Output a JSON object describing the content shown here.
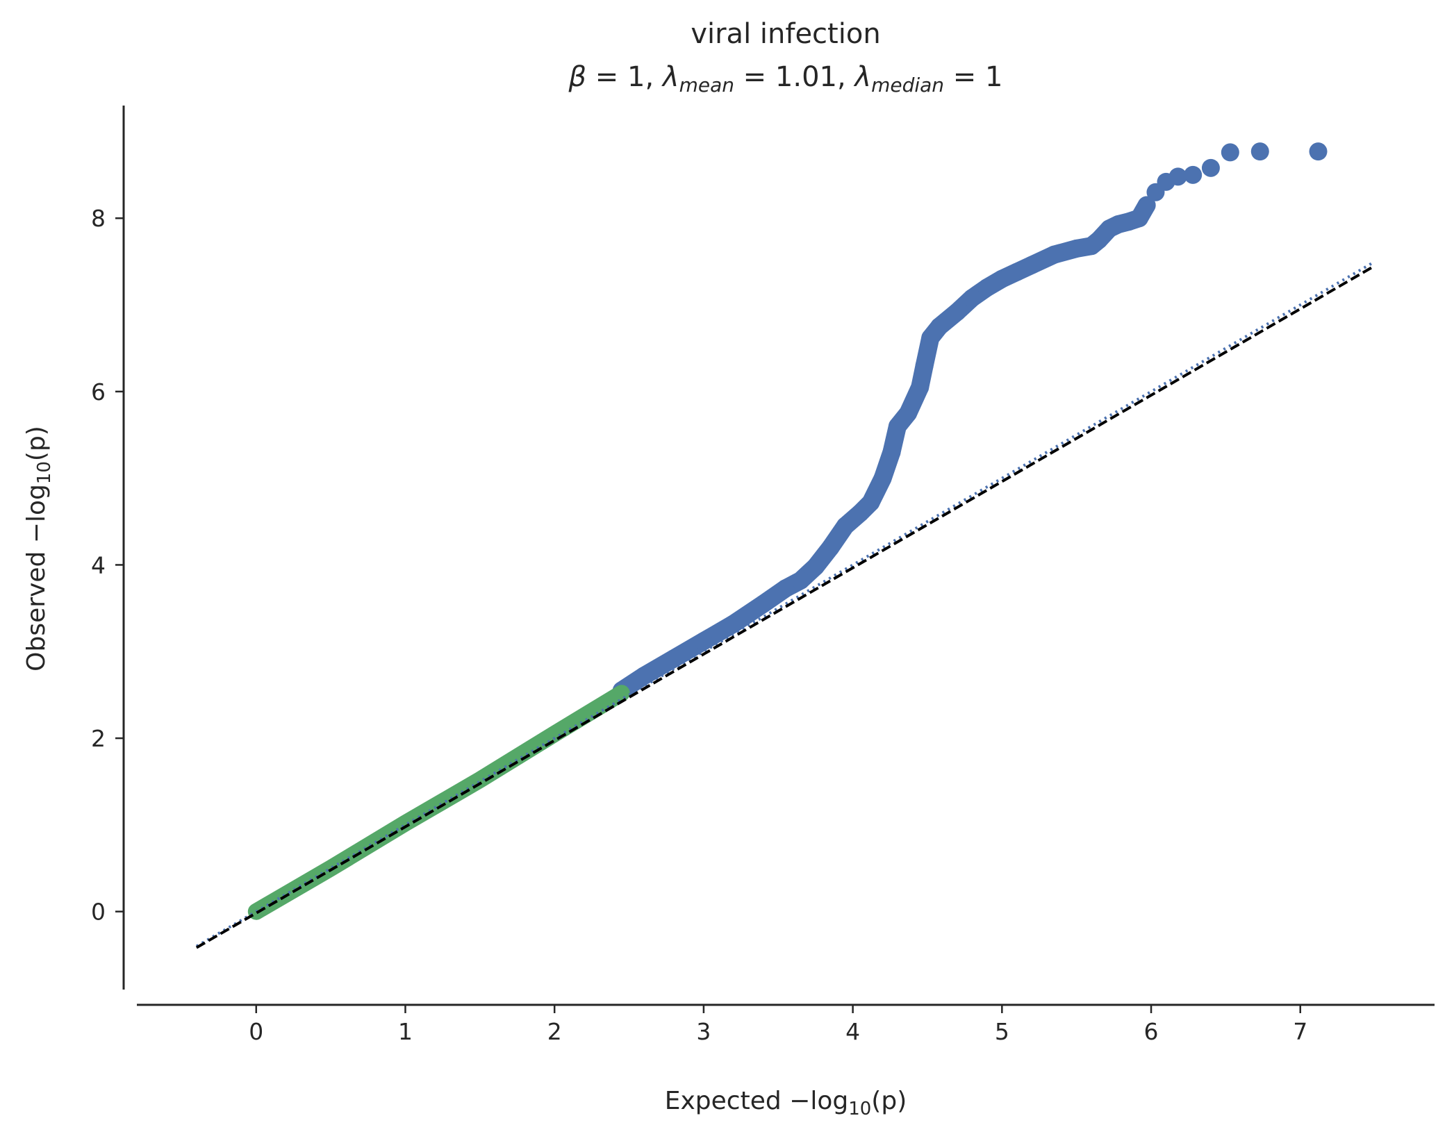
{
  "chart_data": {
    "type": "scatter",
    "title": "viral infection",
    "subtitle": {
      "beta": {
        "symbol": "β",
        "eq": " = 1, "
      },
      "lambda_mean": {
        "symbol": "λ",
        "sub": "mean",
        "eq": " = 1.01, "
      },
      "lambda_median": {
        "symbol": "λ",
        "sub": "median",
        "eq": " = 1"
      }
    },
    "xlabel": {
      "pre": "Expected −log",
      "sub": "10",
      "post": "(p)"
    },
    "ylabel": {
      "pre": "Observed −log",
      "sub": "10",
      "post": "(p)"
    },
    "xlim": [
      -0.8,
      7.9
    ],
    "ylim": [
      -0.9,
      9.3
    ],
    "xticks": [
      0,
      1,
      2,
      3,
      4,
      5,
      6,
      7
    ],
    "yticks": [
      0,
      2,
      4,
      6,
      8
    ],
    "grid": false,
    "colors": {
      "observed": "#4c72b0",
      "null_region": "#55a868",
      "reference": "#000000",
      "axis": "#262626"
    },
    "series": [
      {
        "name": "",
        "role": "observed",
        "points": [
          [
            2.45,
            2.55
          ],
          [
            2.6,
            2.72
          ],
          [
            2.8,
            2.92
          ],
          [
            3.0,
            3.12
          ],
          [
            3.2,
            3.32
          ],
          [
            3.4,
            3.55
          ],
          [
            3.55,
            3.73
          ],
          [
            3.65,
            3.82
          ],
          [
            3.75,
            3.98
          ],
          [
            3.85,
            4.2
          ],
          [
            3.95,
            4.45
          ],
          [
            4.05,
            4.6
          ],
          [
            4.12,
            4.72
          ],
          [
            4.2,
            5.0
          ],
          [
            4.26,
            5.3
          ],
          [
            4.3,
            5.6
          ],
          [
            4.37,
            5.75
          ],
          [
            4.45,
            6.05
          ],
          [
            4.48,
            6.3
          ],
          [
            4.52,
            6.62
          ],
          [
            4.58,
            6.75
          ],
          [
            4.7,
            6.92
          ],
          [
            4.8,
            7.08
          ],
          [
            4.9,
            7.2
          ],
          [
            5.0,
            7.3
          ],
          [
            5.1,
            7.38
          ],
          [
            5.2,
            7.46
          ],
          [
            5.35,
            7.58
          ],
          [
            5.5,
            7.65
          ],
          [
            5.6,
            7.68
          ],
          [
            5.65,
            7.75
          ],
          [
            5.72,
            7.88
          ],
          [
            5.78,
            7.93
          ],
          [
            5.85,
            7.96
          ],
          [
            5.92,
            8.0
          ],
          [
            5.97,
            8.15
          ],
          [
            6.03,
            8.3
          ],
          [
            6.1,
            8.42
          ],
          [
            6.18,
            8.48
          ],
          [
            6.28,
            8.5
          ],
          [
            6.4,
            8.58
          ],
          [
            6.53,
            8.76
          ],
          [
            6.73,
            8.77
          ],
          [
            7.12,
            8.77
          ]
        ]
      },
      {
        "name": "",
        "role": "null_region",
        "points": [
          [
            0,
            0
          ],
          [
            0.5,
            0.5
          ],
          [
            1.0,
            1.02
          ],
          [
            1.5,
            1.52
          ],
          [
            2.0,
            2.05
          ],
          [
            2.45,
            2.52
          ]
        ]
      },
      {
        "name": "",
        "role": "reference_dashed",
        "points": [
          [
            -0.4,
            -0.4
          ],
          [
            7.5,
            7.5
          ]
        ]
      },
      {
        "name": "",
        "role": "reference_dotted",
        "points": [
          [
            -0.4,
            -0.4
          ],
          [
            7.5,
            7.5
          ]
        ]
      }
    ]
  }
}
